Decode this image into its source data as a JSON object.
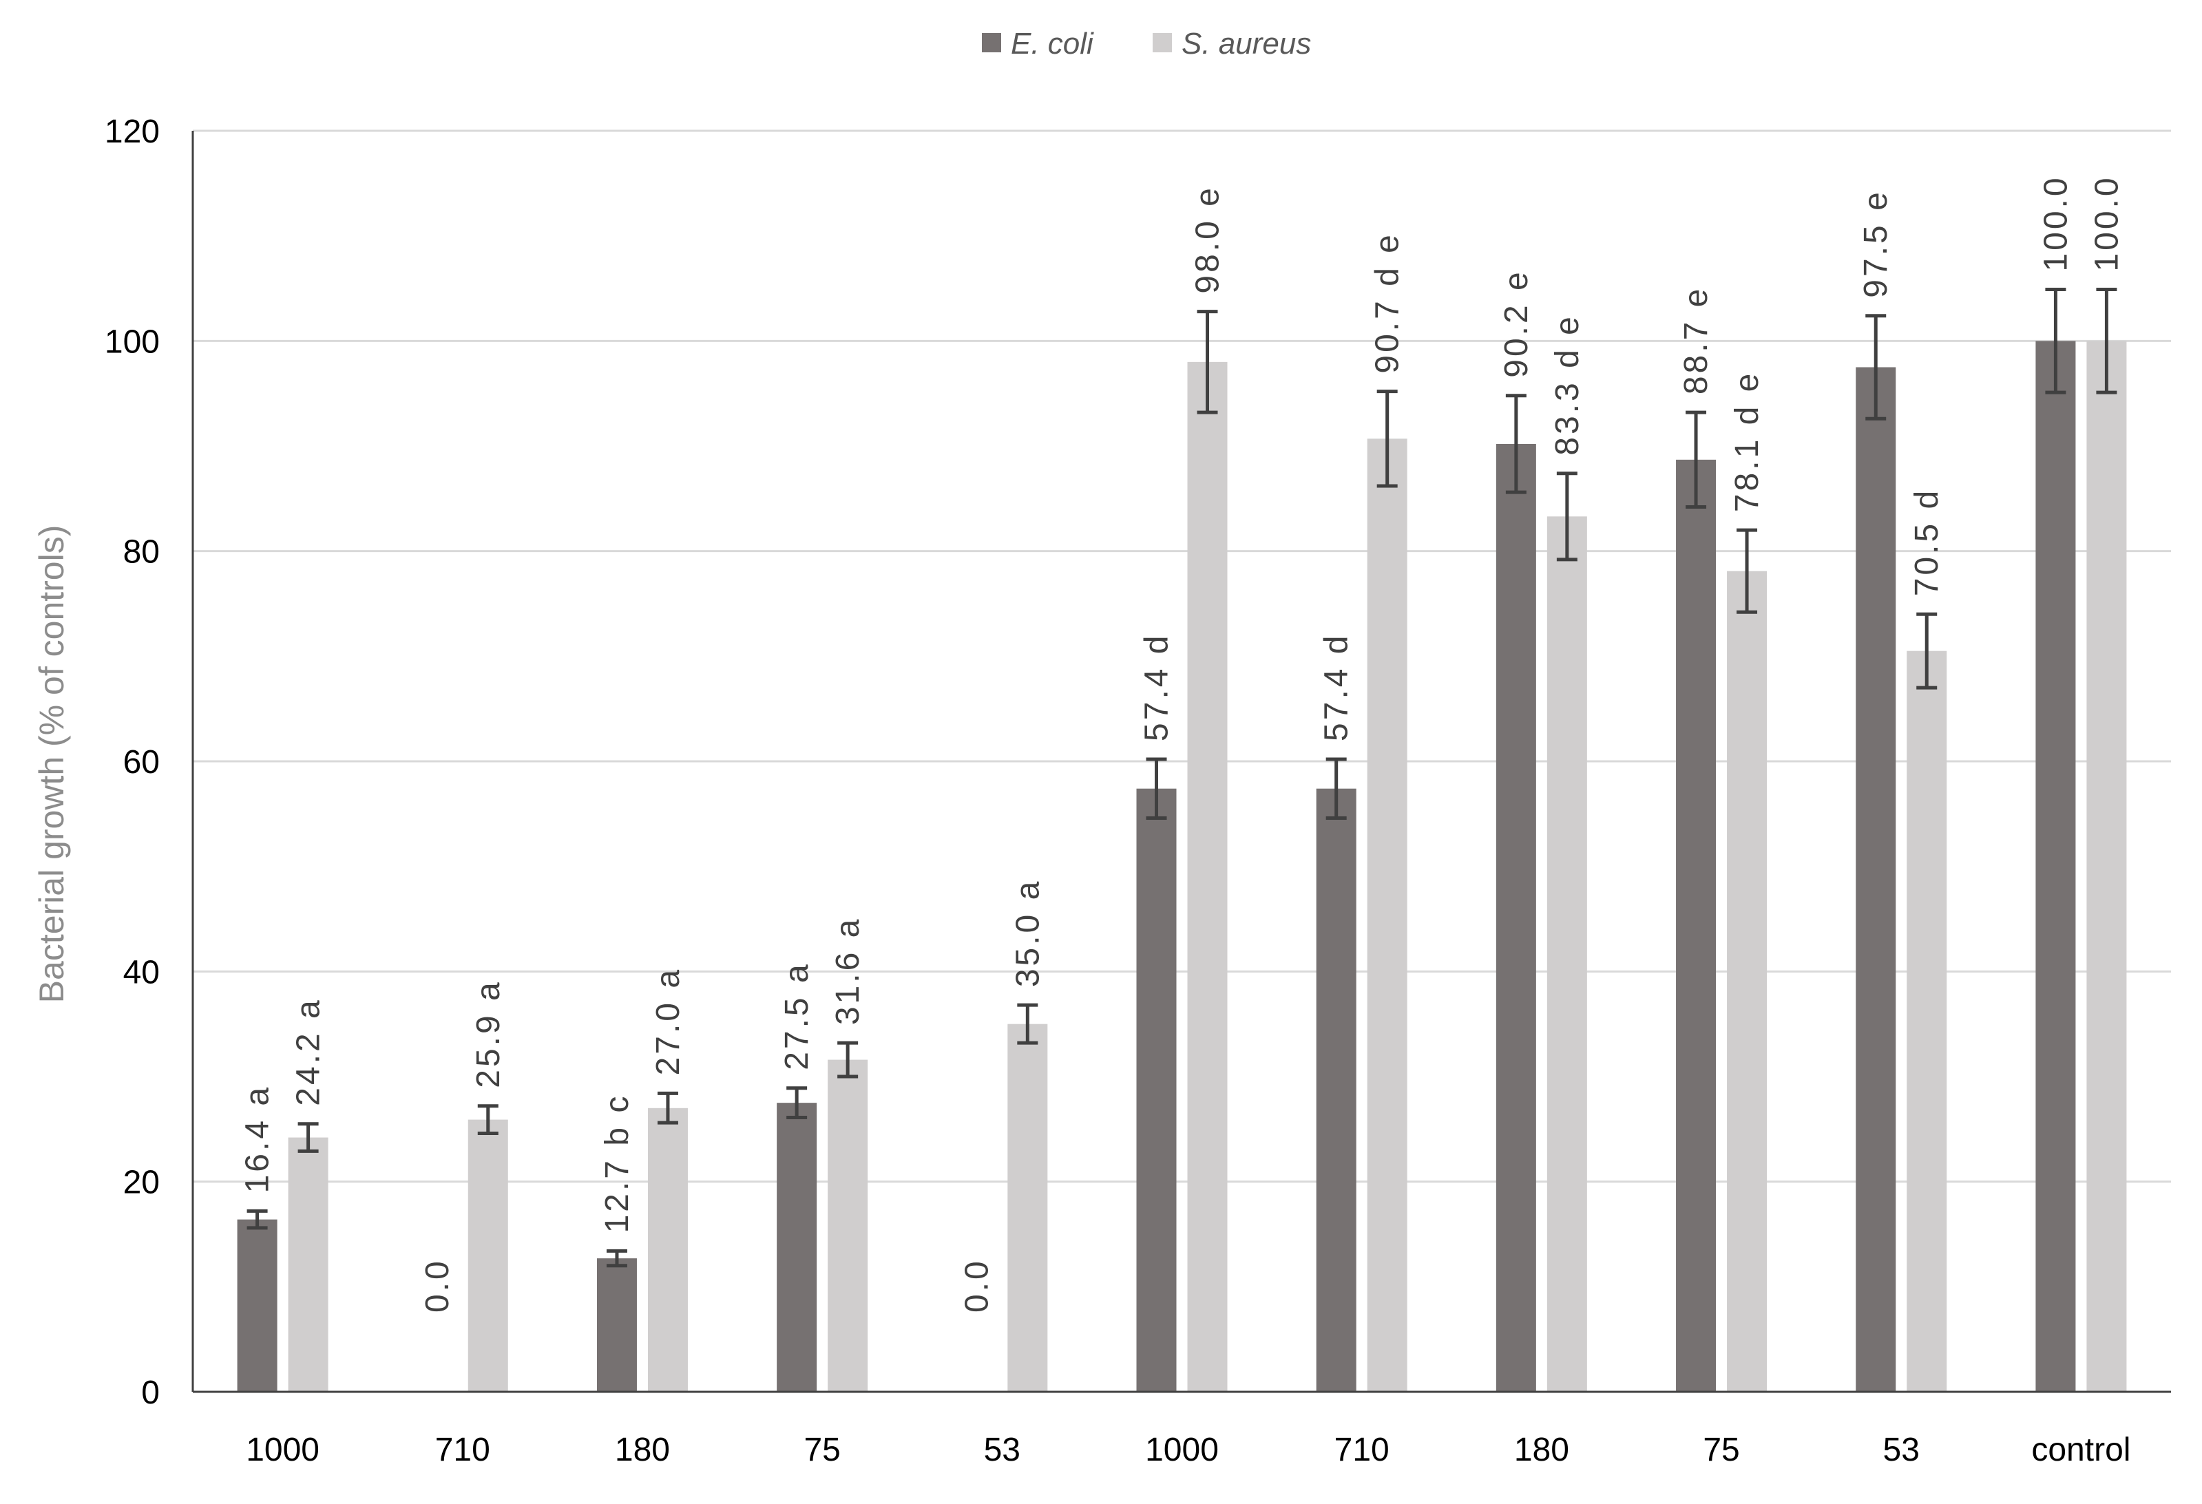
{
  "chart_data": {
    "type": "bar",
    "title": "",
    "xlabel": "",
    "ylabel": "Bacterial growth (% of controls)",
    "ylim": [
      0,
      120
    ],
    "yticks": [
      0,
      20,
      40,
      60,
      80,
      100,
      120
    ],
    "grid": true,
    "legend_position": "top-center",
    "categories": [
      "1000",
      "710",
      "180",
      "75",
      "53",
      "1000",
      "710",
      "180",
      "75",
      "53",
      "control"
    ],
    "series": [
      {
        "name": "E. coli",
        "color": "#767171",
        "values": [
          16.4,
          0.0,
          12.7,
          27.5,
          0.0,
          57.4,
          57.4,
          90.2,
          88.7,
          97.5,
          100.0
        ],
        "errors": [
          0.8,
          0.0,
          0.7,
          1.4,
          0.0,
          2.8,
          2.8,
          4.6,
          4.5,
          4.9,
          4.9
        ],
        "labels": [
          "16.4 a",
          "0.0",
          "12.7 b c",
          "27.5 a",
          "0.0",
          "57.4 d",
          "57.4 d",
          "90.2 e",
          "88.7 e",
          "97.5 e",
          "100.0"
        ]
      },
      {
        "name": "S. aureus",
        "color": "#d0cece",
        "values": [
          24.2,
          25.9,
          27.0,
          31.6,
          35.0,
          98.0,
          90.7,
          83.3,
          78.1,
          70.5,
          100.0
        ],
        "errors": [
          1.3,
          1.3,
          1.4,
          1.6,
          1.8,
          4.8,
          4.5,
          4.1,
          3.9,
          3.5,
          4.9
        ],
        "labels": [
          "24.2 a",
          "25.9 a",
          "27.0 a",
          "31.6 a",
          "35.0 a",
          "98.0 e",
          "90.7 d e",
          "83.3 d e",
          "78.1 d e",
          "70.5 d",
          "100.0"
        ]
      }
    ]
  }
}
